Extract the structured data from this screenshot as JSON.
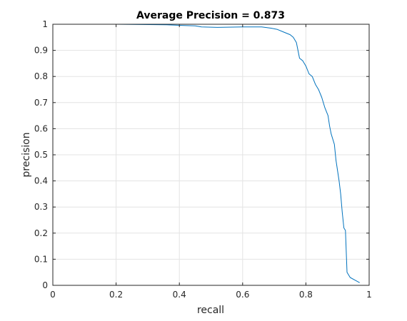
{
  "chart_data": {
    "type": "line",
    "title": "Average Precision = 0.873",
    "xlabel": "recall",
    "ylabel": "precision",
    "xlim": [
      0,
      1
    ],
    "ylim": [
      0,
      1
    ],
    "xticks": [
      "0",
      "0.2",
      "0.4",
      "0.6",
      "0.8",
      "1"
    ],
    "yticks": [
      "0",
      "0.1",
      "0.2",
      "0.3",
      "0.4",
      "0.5",
      "0.6",
      "0.7",
      "0.8",
      "0.9",
      "1"
    ],
    "grid": true,
    "line_color": "#0072BD",
    "series": [
      {
        "x": [
          0.0,
          0.2,
          0.36,
          0.4,
          0.45,
          0.47,
          0.52,
          0.6,
          0.66,
          0.69,
          0.71,
          0.73,
          0.75,
          0.76,
          0.77,
          0.78,
          0.79,
          0.8,
          0.81,
          0.82,
          0.83,
          0.84,
          0.85,
          0.86,
          0.87,
          0.875,
          0.88,
          0.89,
          0.895,
          0.9,
          0.905,
          0.91,
          0.915,
          0.92,
          0.925,
          0.93,
          0.94,
          0.955,
          0.97
        ],
        "y": [
          1.0,
          1.0,
          0.998,
          0.996,
          0.994,
          0.99,
          0.988,
          0.99,
          0.99,
          0.985,
          0.98,
          0.97,
          0.96,
          0.95,
          0.93,
          0.87,
          0.86,
          0.84,
          0.81,
          0.8,
          0.77,
          0.75,
          0.72,
          0.68,
          0.65,
          0.61,
          0.58,
          0.54,
          0.48,
          0.44,
          0.4,
          0.35,
          0.28,
          0.22,
          0.21,
          0.05,
          0.03,
          0.02,
          0.01
        ]
      }
    ]
  }
}
